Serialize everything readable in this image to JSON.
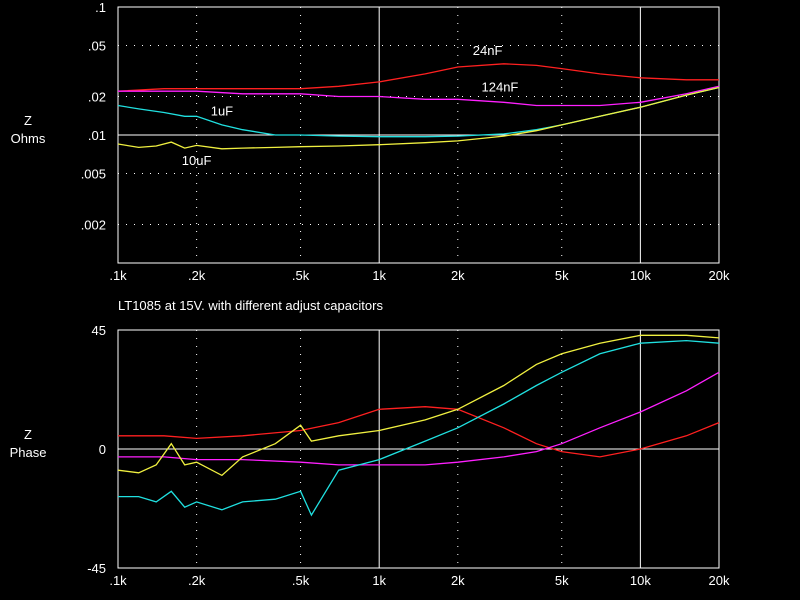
{
  "chart_data": [
    {
      "type": "line",
      "caption": "",
      "ylabel": [
        "Z",
        "Ohms"
      ],
      "xscale": "log",
      "yscale": "log",
      "xlim": [
        100,
        20000
      ],
      "ylim": [
        0.001,
        0.1
      ],
      "grid": true,
      "x_ticks": [
        {
          "v": 100,
          "label": ".1k"
        },
        {
          "v": 200,
          "label": ".2k"
        },
        {
          "v": 500,
          "label": ".5k"
        },
        {
          "v": 1000,
          "label": "1k"
        },
        {
          "v": 2000,
          "label": "2k"
        },
        {
          "v": 5000,
          "label": "5k"
        },
        {
          "v": 10000,
          "label": "10k"
        },
        {
          "v": 20000,
          "label": "20k"
        }
      ],
      "y_ticks": [
        {
          "v": 0.1,
          "label": ".1"
        },
        {
          "v": 0.05,
          "label": ".05"
        },
        {
          "v": 0.02,
          "label": ".02"
        },
        {
          "v": 0.01,
          "label": ".01"
        },
        {
          "v": 0.005,
          "label": ".005"
        },
        {
          "v": 0.002,
          "label": ".002"
        }
      ],
      "series": [
        {
          "name": "24nF",
          "color": "#ff2020",
          "x": [
            100,
            150,
            200,
            300,
            500,
            700,
            1000,
            1500,
            2000,
            3000,
            4000,
            5000,
            7000,
            10000,
            15000,
            20000
          ],
          "y": [
            0.022,
            0.023,
            0.023,
            0.023,
            0.023,
            0.024,
            0.026,
            0.03,
            0.034,
            0.036,
            0.035,
            0.033,
            0.03,
            0.028,
            0.027,
            0.027
          ]
        },
        {
          "name": "124nF",
          "color": "#ff20ff",
          "x": [
            100,
            150,
            200,
            300,
            500,
            700,
            1000,
            1500,
            2000,
            3000,
            4000,
            5000,
            7000,
            10000,
            15000,
            20000
          ],
          "y": [
            0.022,
            0.022,
            0.022,
            0.021,
            0.021,
            0.02,
            0.02,
            0.019,
            0.019,
            0.018,
            0.017,
            0.017,
            0.017,
            0.018,
            0.021,
            0.024
          ]
        },
        {
          "name": "1uF",
          "color": "#20e0e0",
          "x": [
            100,
            120,
            150,
            180,
            200,
            250,
            300,
            400,
            500,
            700,
            1000,
            1500,
            2000,
            3000,
            4000,
            5000,
            7000,
            10000,
            15000,
            20000
          ],
          "y": [
            0.017,
            0.016,
            0.015,
            0.014,
            0.014,
            0.012,
            0.011,
            0.01,
            0.01,
            0.0098,
            0.0097,
            0.0097,
            0.0098,
            0.0102,
            0.011,
            0.012,
            0.014,
            0.0165,
            0.0205,
            0.0235
          ]
        },
        {
          "name": "10uF",
          "color": "#f0f040",
          "x": [
            100,
            120,
            140,
            160,
            180,
            200,
            250,
            300,
            400,
            500,
            700,
            1000,
            1500,
            2000,
            3000,
            4000,
            5000,
            7000,
            10000,
            15000,
            20000
          ],
          "y": [
            0.0085,
            0.008,
            0.0082,
            0.0088,
            0.0079,
            0.0083,
            0.0078,
            0.0079,
            0.008,
            0.0081,
            0.0082,
            0.0084,
            0.0087,
            0.009,
            0.0098,
            0.0108,
            0.012,
            0.014,
            0.0165,
            0.0205,
            0.0235
          ]
        }
      ],
      "annotations": [
        {
          "text": "24nF",
          "x": 2600,
          "y": 0.046
        },
        {
          "text": "124nF",
          "x": 2900,
          "y": 0.024
        },
        {
          "text": "1uF",
          "x": 250,
          "y": 0.0155
        },
        {
          "text": "10uF",
          "x": 200,
          "y": 0.0064
        }
      ]
    },
    {
      "type": "line",
      "caption": "LT1085 at 15V. with different adjust capacitors",
      "ylabel": [
        "Z",
        "Phase"
      ],
      "xscale": "log",
      "yscale": "linear",
      "xlim": [
        100,
        20000
      ],
      "ylim": [
        -45,
        45
      ],
      "grid": true,
      "x_ticks": [
        {
          "v": 100,
          "label": ".1k"
        },
        {
          "v": 200,
          "label": ".2k"
        },
        {
          "v": 500,
          "label": ".5k"
        },
        {
          "v": 1000,
          "label": "1k"
        },
        {
          "v": 2000,
          "label": "2k"
        },
        {
          "v": 5000,
          "label": "5k"
        },
        {
          "v": 10000,
          "label": "10k"
        },
        {
          "v": 20000,
          "label": "20k"
        }
      ],
      "y_ticks": [
        {
          "v": 45,
          "label": "45"
        },
        {
          "v": 0,
          "label": "0"
        },
        {
          "v": -45,
          "label": "-45"
        }
      ],
      "series": [
        {
          "name": "24nF",
          "color": "#ff2020",
          "x": [
            100,
            150,
            200,
            300,
            500,
            700,
            1000,
            1500,
            2000,
            3000,
            4000,
            5000,
            7000,
            10000,
            15000,
            20000
          ],
          "y": [
            5,
            5,
            4,
            5,
            7,
            10,
            15,
            16,
            15,
            8,
            2,
            -1,
            -3,
            0,
            5,
            10
          ]
        },
        {
          "name": "124nF",
          "color": "#ff20ff",
          "x": [
            100,
            150,
            200,
            300,
            500,
            700,
            1000,
            1500,
            2000,
            3000,
            4000,
            5000,
            7000,
            10000,
            15000,
            20000
          ],
          "y": [
            -3,
            -3,
            -4,
            -4,
            -5,
            -6,
            -6,
            -6,
            -5,
            -3,
            -1,
            2,
            8,
            14,
            22,
            29
          ]
        },
        {
          "name": "1uF",
          "color": "#20e0e0",
          "x": [
            100,
            120,
            140,
            160,
            180,
            200,
            250,
            300,
            400,
            500,
            550,
            700,
            1000,
            1500,
            2000,
            3000,
            4000,
            5000,
            7000,
            10000,
            15000,
            20000
          ],
          "y": [
            -18,
            -18,
            -20,
            -16,
            -22,
            -20,
            -23,
            -20,
            -19,
            -16,
            -25,
            -8,
            -4,
            3,
            8,
            17,
            24,
            29,
            36,
            40,
            41,
            40
          ]
        },
        {
          "name": "10uF",
          "color": "#f0f040",
          "x": [
            100,
            120,
            140,
            160,
            180,
            200,
            250,
            300,
            400,
            500,
            550,
            700,
            1000,
            1500,
            2000,
            3000,
            4000,
            5000,
            7000,
            10000,
            15000,
            20000
          ],
          "y": [
            -8,
            -9,
            -6,
            2,
            -6,
            -5,
            -10,
            -3,
            2,
            9,
            3,
            5,
            7,
            11,
            15,
            24,
            32,
            36,
            40,
            43,
            43,
            42
          ]
        }
      ],
      "annotations": []
    }
  ]
}
